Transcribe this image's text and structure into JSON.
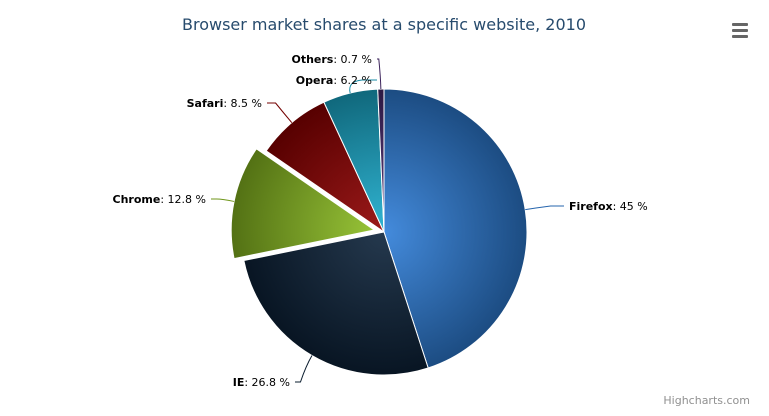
{
  "chart_data": {
    "type": "pie",
    "title": "Browser market shares at a specific website, 2010",
    "slices": [
      {
        "name": "Firefox",
        "value": 45.0,
        "color": "#2f7ed8"
      },
      {
        "name": "IE",
        "value": 26.8,
        "color": "#0d233a"
      },
      {
        "name": "Chrome",
        "value": 12.8,
        "color": "#8bbc21",
        "sliced": true
      },
      {
        "name": "Safari",
        "value": 8.5,
        "color": "#910000"
      },
      {
        "name": "Opera",
        "value": 6.2,
        "color": "#1aadce"
      },
      {
        "name": "Others",
        "value": 0.7,
        "color": "#492970"
      }
    ],
    "value_suffix": " %"
  },
  "credits": "Highcharts.com",
  "menu_icon": "hamburger-menu-icon"
}
